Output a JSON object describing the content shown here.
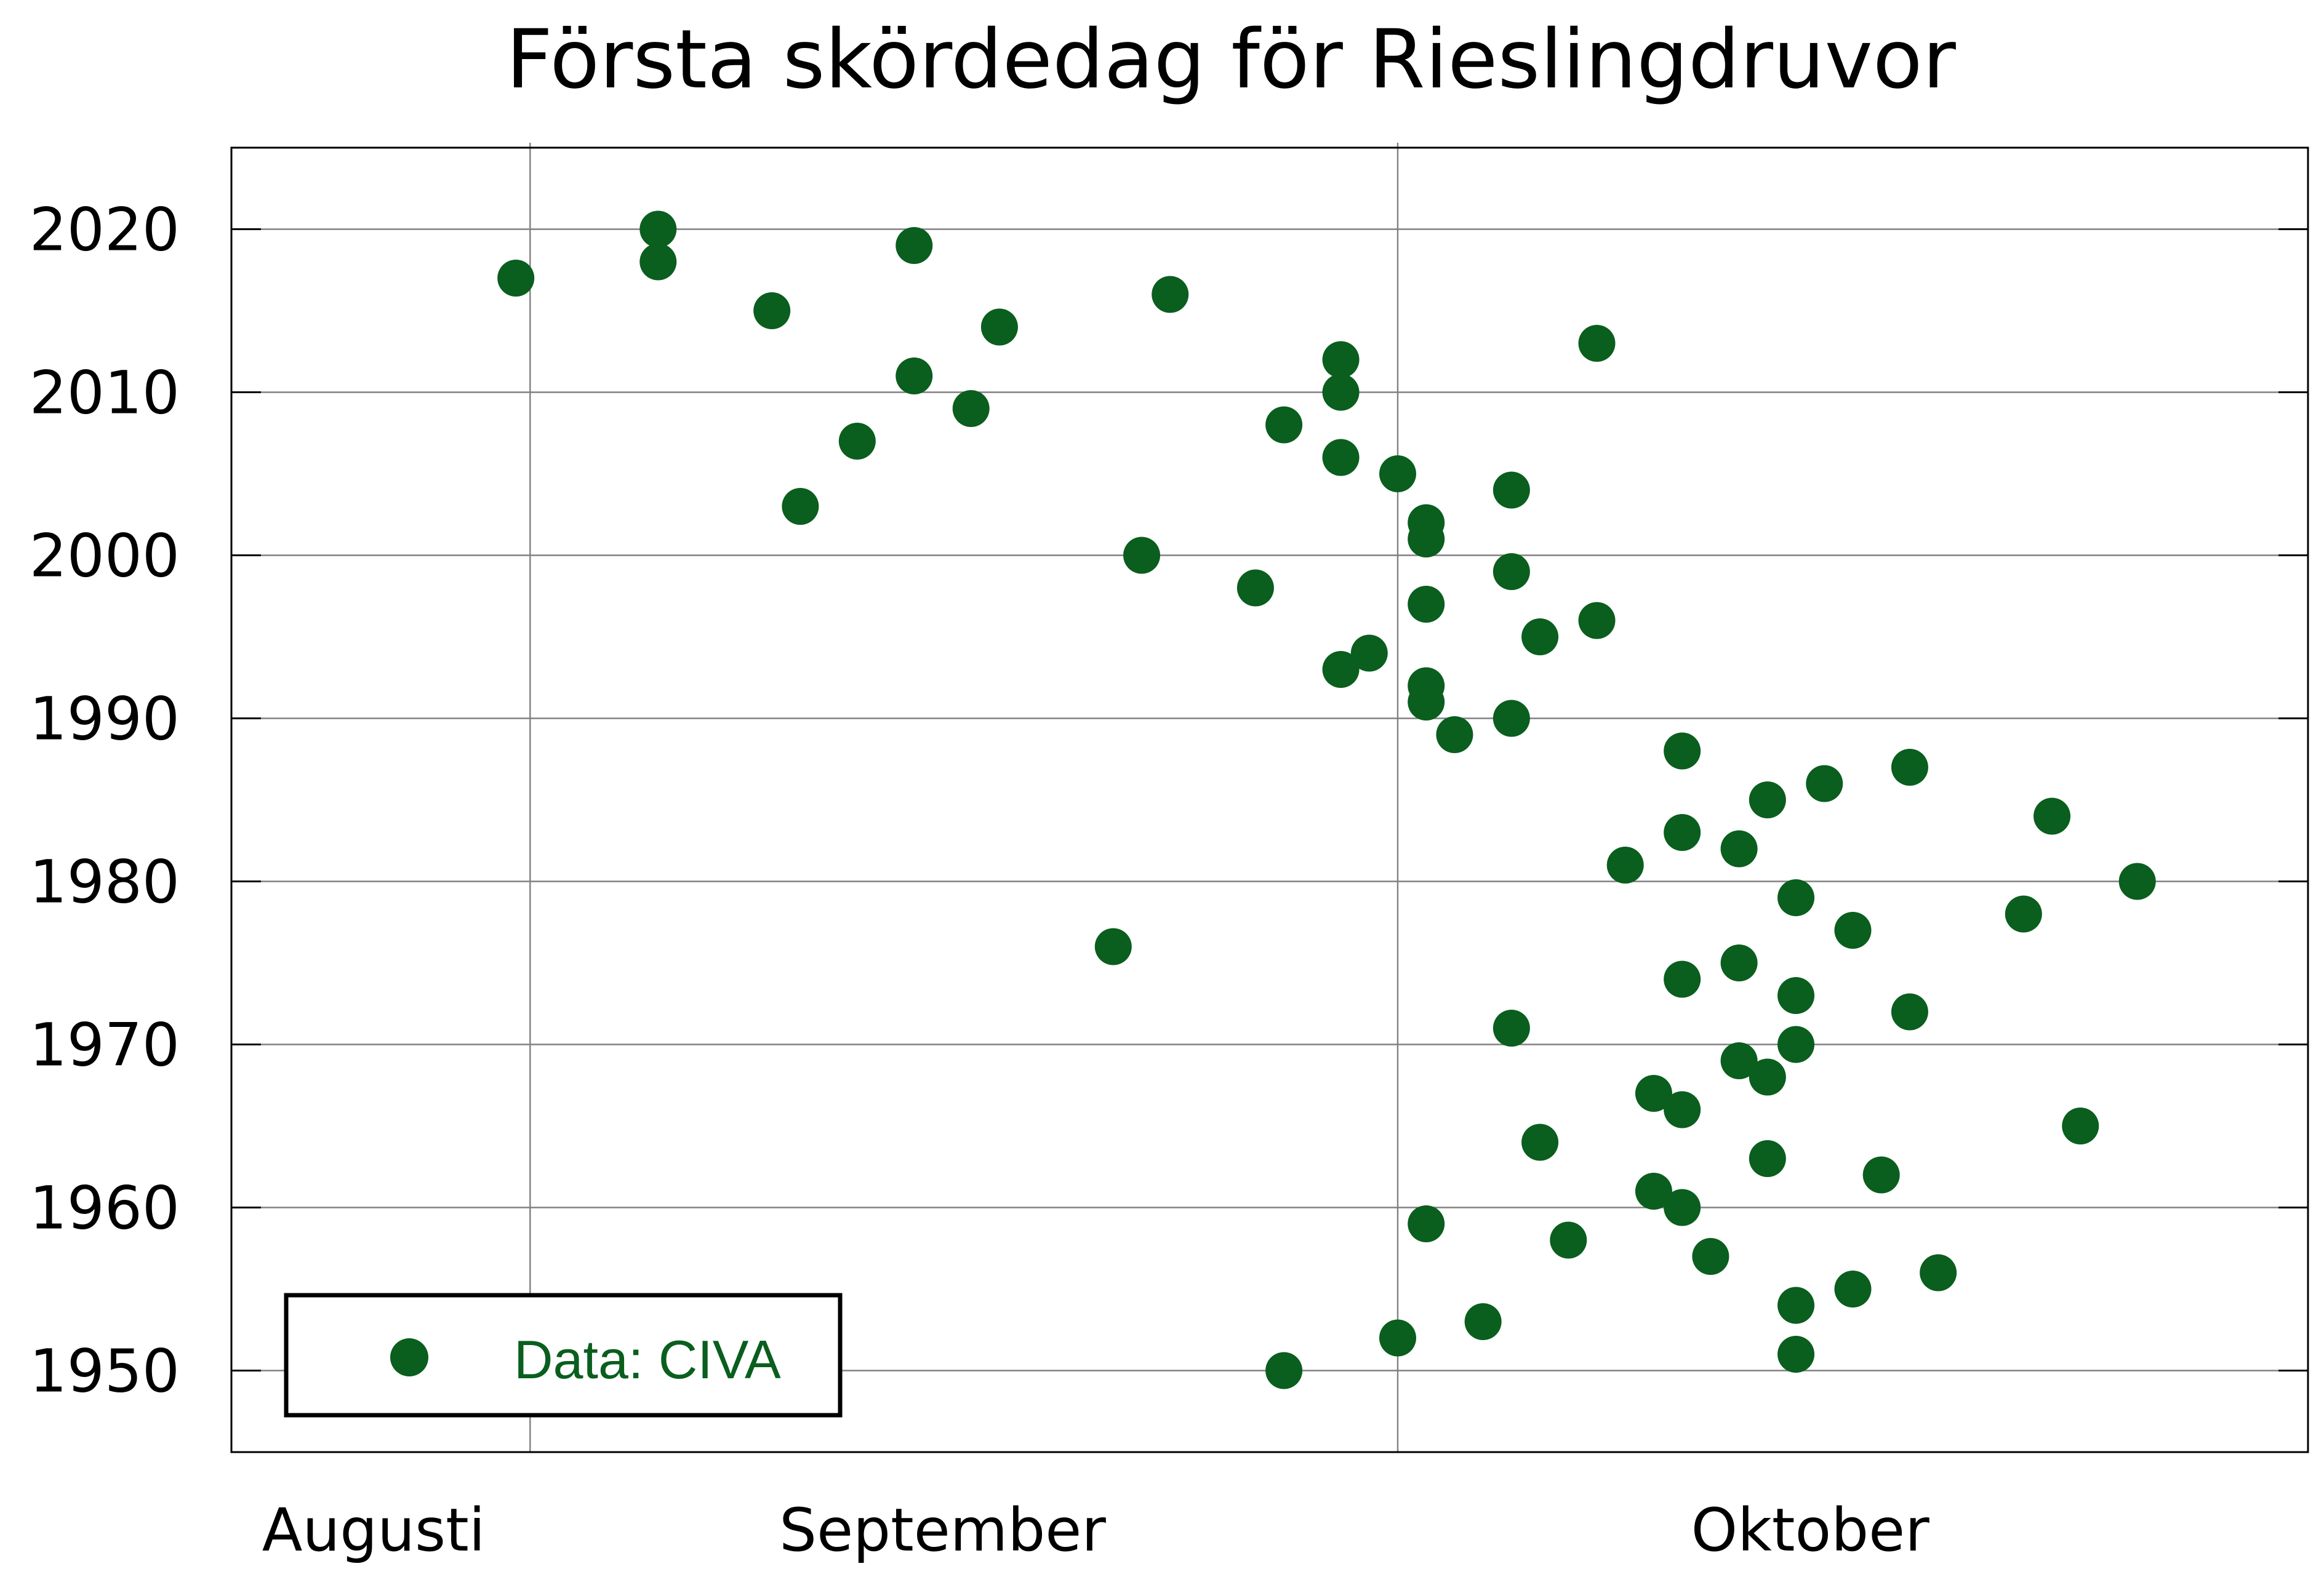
{
  "chart_data": {
    "type": "scatter",
    "title": "Första skördedag för Rieslingdruvor",
    "xlabel": "",
    "ylabel": "",
    "x_unit": "day of year",
    "xlim": [
      213,
      286
    ],
    "ylim": [
      1945,
      2025
    ],
    "y_ticks": [
      1950,
      1960,
      1970,
      1980,
      1990,
      2000,
      2010,
      2020
    ],
    "x_gridlines": [
      223.5,
      254
    ],
    "month_labels": [
      {
        "text": "Augusti",
        "center": 218
      },
      {
        "text": "September",
        "center": 238
      },
      {
        "text": "Oktober",
        "center": 268.5
      }
    ],
    "grid": true,
    "legend": {
      "placement": "bottom-left",
      "label": "Data: CIVA"
    },
    "marker_color": "#0a5e1e",
    "series": [
      {
        "name": "Data: CIVA",
        "points": [
          [
            223,
            2017
          ],
          [
            228,
            2020
          ],
          [
            228,
            2018
          ],
          [
            232,
            2015
          ],
          [
            233,
            2003
          ],
          [
            235,
            2007
          ],
          [
            237,
            2019
          ],
          [
            237,
            2011
          ],
          [
            239,
            2009
          ],
          [
            240,
            2014
          ],
          [
            244,
            1976
          ],
          [
            245,
            2000
          ],
          [
            246,
            2016
          ],
          [
            249,
            1998
          ],
          [
            250,
            2008
          ],
          [
            250,
            1950
          ],
          [
            252,
            2012
          ],
          [
            252,
            2010
          ],
          [
            252,
            2006
          ],
          [
            252,
            1993
          ],
          [
            253,
            1994
          ],
          [
            254,
            2005
          ],
          [
            254,
            1952
          ],
          [
            255,
            2002
          ],
          [
            255,
            2001
          ],
          [
            255,
            1997
          ],
          [
            255,
            1992
          ],
          [
            255,
            1991
          ],
          [
            255,
            1959
          ],
          [
            256,
            1989
          ],
          [
            257,
            1953
          ],
          [
            258,
            2004
          ],
          [
            258,
            1999
          ],
          [
            258,
            1990
          ],
          [
            258,
            1971
          ],
          [
            259,
            1995
          ],
          [
            259,
            1964
          ],
          [
            260,
            1958
          ],
          [
            261,
            2013
          ],
          [
            261,
            1996
          ],
          [
            262,
            1981
          ],
          [
            263,
            1967
          ],
          [
            263,
            1961
          ],
          [
            264,
            1988
          ],
          [
            264,
            1983
          ],
          [
            264,
            1974
          ],
          [
            264,
            1966
          ],
          [
            264,
            1960
          ],
          [
            265,
            1957
          ],
          [
            266,
            1982
          ],
          [
            266,
            1975
          ],
          [
            266,
            1969
          ],
          [
            267,
            1985
          ],
          [
            267,
            1968
          ],
          [
            267,
            1963
          ],
          [
            268,
            1979
          ],
          [
            268,
            1973
          ],
          [
            268,
            1970
          ],
          [
            268,
            1954
          ],
          [
            268,
            1951
          ],
          [
            269,
            1986
          ],
          [
            270,
            1977
          ],
          [
            270,
            1955
          ],
          [
            271,
            1962
          ],
          [
            272,
            1987
          ],
          [
            272,
            1972
          ],
          [
            273,
            1956
          ],
          [
            276,
            1978
          ],
          [
            277,
            1984
          ],
          [
            278,
            1965
          ],
          [
            280,
            1980
          ]
        ]
      }
    ]
  }
}
